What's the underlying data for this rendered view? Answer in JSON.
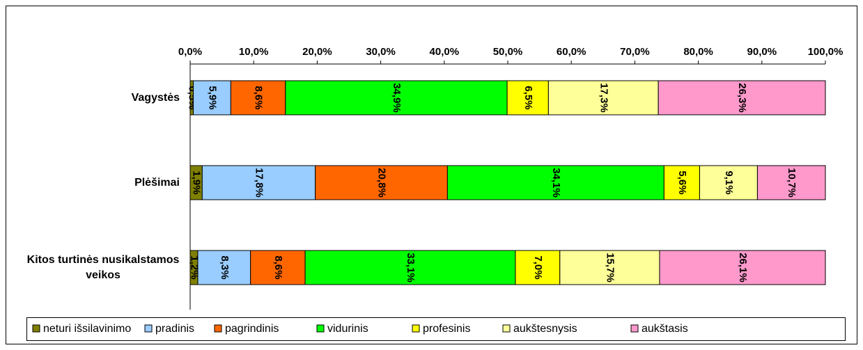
{
  "chart_data": {
    "type": "stacked-bar-horizontal",
    "categories": [
      "Vagystės",
      "Plėšimai",
      "Kitos turtinės nusikalstamos veikos"
    ],
    "xlim": [
      0,
      100
    ],
    "xticks": [
      {
        "value": 0,
        "label": "0,0%"
      },
      {
        "value": 10,
        "label": "10,0%"
      },
      {
        "value": 20,
        "label": "20,0%"
      },
      {
        "value": 30,
        "label": "30,0%"
      },
      {
        "value": 40,
        "label": "40,0%"
      },
      {
        "value": 50,
        "label": "50,0%"
      },
      {
        "value": 60,
        "label": "60,0%"
      },
      {
        "value": 70,
        "label": "70,0%"
      },
      {
        "value": 80,
        "label": "80,0%"
      },
      {
        "value": 90,
        "label": "90,0%"
      },
      {
        "value": 100,
        "label": "100,0%"
      }
    ],
    "series": [
      {
        "name": "neturi išsilavinimo",
        "color": "#808000",
        "values": [
          0.5,
          1.9,
          1.2
        ],
        "value_labels": [
          "0,5%",
          "1,9%",
          "1,2%"
        ]
      },
      {
        "name": "pradinis",
        "color": "#99ccff",
        "values": [
          5.9,
          17.8,
          8.3
        ],
        "value_labels": [
          "5,9%",
          "17,8%",
          "8,3%"
        ]
      },
      {
        "name": "pagrindinis",
        "color": "#ff6600",
        "values": [
          8.6,
          20.8,
          8.6
        ],
        "value_labels": [
          "8,6%",
          "20,8%",
          "8,6%"
        ]
      },
      {
        "name": "vidurinis",
        "color": "#00ff00",
        "values": [
          34.9,
          34.1,
          33.1
        ],
        "value_labels": [
          "34,9%",
          "34,1%",
          "33,1%"
        ]
      },
      {
        "name": "profesinis",
        "color": "#ffff00",
        "values": [
          6.5,
          5.6,
          7.0
        ],
        "value_labels": [
          "6,5%",
          "5,6%",
          "7,0%"
        ]
      },
      {
        "name": "aukštesnysis",
        "color": "#ffff99",
        "values": [
          17.3,
          9.1,
          15.7
        ],
        "value_labels": [
          "17,3%",
          "9,1%",
          "15,7%"
        ]
      },
      {
        "name": "aukštasis",
        "color": "#ff99cc",
        "values": [
          26.3,
          10.7,
          26.1
        ],
        "value_labels": [
          "26,3%",
          "10,7%",
          "26,1%"
        ]
      }
    ],
    "legend": "bottom"
  }
}
